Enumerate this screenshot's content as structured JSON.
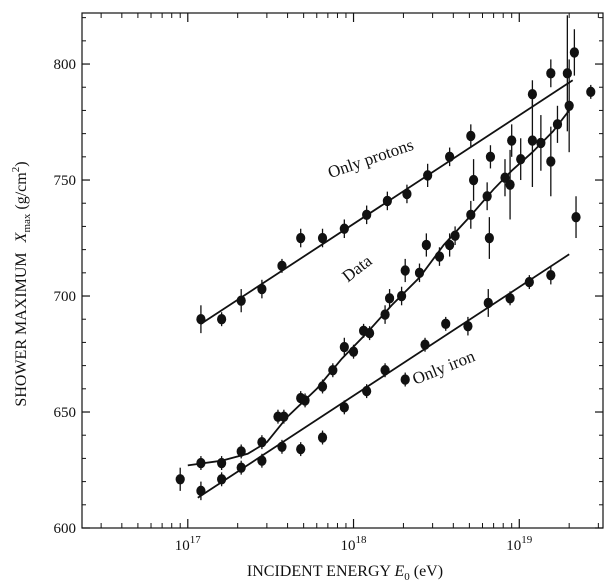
{
  "chart_data": {
    "type": "scatter",
    "title": "",
    "xlabel": "INCIDENT ENERGY E0 (eV)",
    "xlabel_parts": {
      "main": "INCIDENT ENERGY ",
      "symbol": "E",
      "sub": "0",
      "unit": " (eV)"
    },
    "ylabel": "SHOWER MAXIMUM Xmax (g/cm2)",
    "ylabel_parts": {
      "main": "SHOWER MAXIMUM ",
      "symbol": "X",
      "sub": "max",
      "unit_pre": " (g/cm",
      "sup": "2",
      "unit_post": ")"
    },
    "xscale": "log",
    "xlim": [
      2.3e+16,
      3.2e+19
    ],
    "ylim": [
      600,
      822
    ],
    "grid": false,
    "legend": "none",
    "x_ticks": [
      {
        "value": 1e+17,
        "base": "10",
        "exp": "17"
      },
      {
        "value": 1e+18,
        "base": "10",
        "exp": "18"
      },
      {
        "value": 1e+19,
        "base": "10",
        "exp": "19"
      }
    ],
    "y_ticks": [
      {
        "value": 600,
        "label": "600"
      },
      {
        "value": 650,
        "label": "650"
      },
      {
        "value": 700,
        "label": "700"
      },
      {
        "value": 750,
        "label": "750"
      },
      {
        "value": 800,
        "label": "800"
      }
    ],
    "annotations": [
      {
        "text": "Only protons",
        "x": 1.3e+18,
        "y": 757,
        "angle": -19
      },
      {
        "text": "Data",
        "x": 1.1e+18,
        "y": 710,
        "angle": -38
      },
      {
        "text": "Only iron",
        "x": 3.6e+18,
        "y": 667,
        "angle": -22
      }
    ],
    "series": [
      {
        "name": "Only protons",
        "style": "markers+line",
        "x": [
          1.2e+17,
          1.6e+17,
          2.1e+17,
          2.8e+17,
          3.7e+17,
          4.8e+17,
          6.5e+17,
          8.8e+17,
          1.2e+18,
          1.6e+18,
          2.1e+18,
          2.8e+18,
          3.8e+18,
          5.1e+18,
          6.7e+18,
          9e+18,
          1.2e+19,
          1.55e+19,
          1.95e+19,
          2.15e+19
        ],
        "y": [
          690,
          690,
          698,
          703,
          713,
          725,
          725,
          729,
          735,
          741,
          744,
          752,
          760,
          769,
          760,
          767,
          787,
          796,
          796,
          805
        ],
        "err": [
          6,
          3,
          5,
          4,
          3,
          4,
          4,
          4,
          4,
          4,
          4,
          5,
          4,
          5,
          5,
          7,
          6,
          6,
          25,
          10
        ],
        "line": {
          "x": [
            1.2e+17,
            2.1e+19
          ],
          "y": [
            688,
            793
          ]
        }
      },
      {
        "name": "Data",
        "style": "markers+line",
        "x": [
          9e+16,
          1.2e+17,
          1.6e+17,
          2.1e+17,
          2.8e+17,
          3.5e+17,
          3.8e+17,
          4.8e+17,
          5.1e+17,
          6.5e+17,
          7.5e+17,
          8.8e+17,
          1e+18,
          1.15e+18,
          1.25e+18,
          1.55e+18,
          1.65e+18,
          1.95e+18,
          2.05e+18,
          2.5e+18,
          2.75e+18,
          3.3e+18,
          3.8e+18,
          4.1e+18,
          5.1e+18,
          5.3e+18,
          6.4e+18,
          6.6e+18,
          8.2e+18,
          8.8e+18,
          1.02e+19,
          1.2e+19,
          1.35e+19,
          1.55e+19,
          1.7e+19,
          2e+19,
          2.2e+19,
          2.7e+19
        ],
        "y": [
          621,
          628,
          628,
          633,
          637,
          648,
          648,
          656,
          655,
          661,
          668,
          678,
          676,
          685,
          684,
          692,
          699,
          700,
          711,
          710,
          722,
          717,
          722,
          726,
          735,
          750,
          743,
          725,
          751,
          748,
          759,
          767,
          766,
          758,
          774,
          782,
          734,
          788
        ],
        "err": [
          5,
          3,
          3,
          3,
          3,
          3,
          3,
          3,
          3,
          3,
          3,
          4,
          3,
          3,
          3,
          4,
          4,
          4,
          5,
          4,
          5,
          4,
          5,
          4,
          6,
          9,
          6,
          9,
          8,
          15,
          9,
          20,
          12,
          15,
          8,
          20,
          9,
          3
        ],
        "line": {
          "x": [
            1e+17,
            1.6e+17,
            2.3e+17,
            3e+17,
            4e+17,
            6e+17,
            8.5e+17,
            1.2e+18,
            1.7e+18,
            2.5e+18,
            3.5e+18,
            5e+18,
            7e+18,
            9e+18,
            1.2e+19,
            1.6e+19,
            2.1e+19
          ],
          "y": [
            627,
            629,
            632,
            637,
            648,
            660,
            673,
            684,
            696,
            708,
            722,
            734,
            746,
            754,
            762,
            771,
            782
          ]
        }
      },
      {
        "name": "Only iron",
        "style": "markers+line",
        "x": [
          1.2e+17,
          1.6e+17,
          2.1e+17,
          2.8e+17,
          3.7e+17,
          4.8e+17,
          6.5e+17,
          8.8e+17,
          1.2e+18,
          1.55e+18,
          2.05e+18,
          2.7e+18,
          3.6e+18,
          4.9e+18,
          6.5e+18,
          8.8e+18,
          1.15e+19,
          1.55e+19
        ],
        "y": [
          616,
          621,
          626,
          629,
          635,
          634,
          639,
          652,
          659,
          668,
          664,
          679,
          688,
          687,
          697,
          699,
          706,
          709
        ],
        "err": [
          4,
          3,
          3,
          3,
          3,
          3,
          3,
          3,
          3,
          3,
          3,
          3,
          3,
          4,
          6,
          3,
          3,
          4
        ],
        "line": {
          "x": [
            1.15e+17,
            2e+19
          ],
          "y": [
            613,
            718
          ]
        }
      }
    ]
  }
}
